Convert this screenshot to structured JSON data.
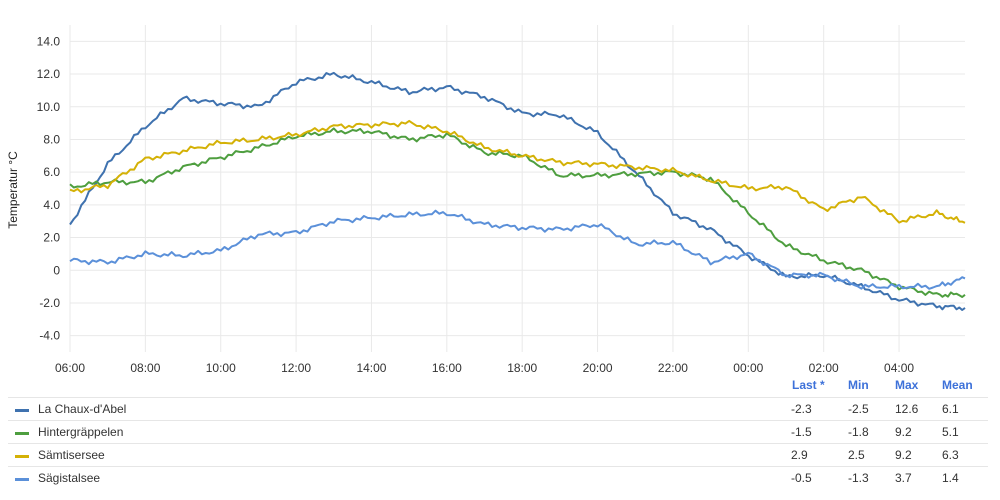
{
  "chart_data": {
    "type": "line",
    "ylabel": "Temperatur °C",
    "ylim": [
      -5,
      15
    ],
    "y_ticks": [
      "14.0",
      "12.0",
      "10.0",
      "8.0",
      "6.0",
      "4.0",
      "2.0",
      "0",
      "-2.0",
      "-4.0"
    ],
    "y_tick_values": [
      14,
      12,
      10,
      8,
      6,
      4,
      2,
      0,
      -2,
      -4
    ],
    "x_ticks": [
      "06:00",
      "08:00",
      "10:00",
      "12:00",
      "14:00",
      "16:00",
      "18:00",
      "20:00",
      "22:00",
      "00:00",
      "02:00",
      "04:00"
    ],
    "x_hours": [
      "06:00",
      "07:00",
      "08:00",
      "09:00",
      "10:00",
      "11:00",
      "12:00",
      "13:00",
      "14:00",
      "15:00",
      "16:00",
      "17:00",
      "18:00",
      "19:00",
      "20:00",
      "21:00",
      "22:00",
      "23:00",
      "00:00",
      "01:00",
      "02:00",
      "03:00",
      "04:00",
      "05:00",
      "05:45"
    ],
    "grid": true,
    "series": [
      {
        "name": "La Chaux-d'Abel",
        "color": "#3f72af",
        "values": [
          2.8,
          6.5,
          8.8,
          10.5,
          10.2,
          10.0,
          11.5,
          12.0,
          11.5,
          10.9,
          11.2,
          10.6,
          9.6,
          9.5,
          8.4,
          6.0,
          3.5,
          2.5,
          0.9,
          -0.4,
          -0.3,
          -1.0,
          -1.8,
          -2.2,
          -2.3
        ]
      },
      {
        "name": "Hintergräppelen",
        "color": "#4e9e3f",
        "values": [
          5.1,
          5.4,
          5.4,
          6.3,
          6.9,
          7.5,
          8.2,
          8.5,
          8.5,
          8.0,
          8.3,
          7.2,
          7.0,
          5.8,
          5.8,
          5.9,
          6.0,
          5.6,
          3.5,
          1.5,
          0.6,
          0.0,
          -1.0,
          -1.5,
          -1.5
        ]
      },
      {
        "name": "Sämtisersee",
        "color": "#d4b106",
        "values": [
          4.8,
          5.2,
          6.8,
          7.3,
          7.8,
          8.0,
          8.3,
          8.8,
          8.9,
          9.0,
          8.5,
          7.5,
          7.0,
          6.6,
          6.5,
          6.3,
          6.1,
          5.5,
          5.0,
          5.1,
          3.7,
          4.5,
          3.0,
          3.5,
          2.9
        ]
      },
      {
        "name": "Sägistalsee",
        "color": "#5b90d9",
        "values": [
          0.6,
          0.5,
          1.0,
          0.9,
          1.2,
          2.2,
          2.3,
          3.0,
          3.2,
          3.4,
          3.5,
          2.8,
          2.6,
          2.5,
          2.8,
          1.6,
          1.7,
          0.5,
          1.0,
          -0.3,
          -0.3,
          -1.0,
          -1.0,
          -1.0,
          -0.5
        ]
      }
    ],
    "table": {
      "headers": [
        "Last *",
        "Min",
        "Max",
        "Mean"
      ],
      "rows": [
        {
          "name": "La Chaux-d'Abel",
          "color": "#3f72af",
          "values": [
            "-2.3",
            "-2.5",
            "12.6",
            "6.1"
          ]
        },
        {
          "name": "Hintergräppelen",
          "color": "#4e9e3f",
          "values": [
            "-1.5",
            "-1.8",
            "9.2",
            "5.1"
          ]
        },
        {
          "name": "Sämtisersee",
          "color": "#d4b106",
          "values": [
            "2.9",
            "2.5",
            "9.2",
            "6.3"
          ]
        },
        {
          "name": "Sägistalsee",
          "color": "#5b90d9",
          "values": [
            "-0.5",
            "-1.3",
            "3.7",
            "1.4"
          ]
        }
      ]
    }
  }
}
